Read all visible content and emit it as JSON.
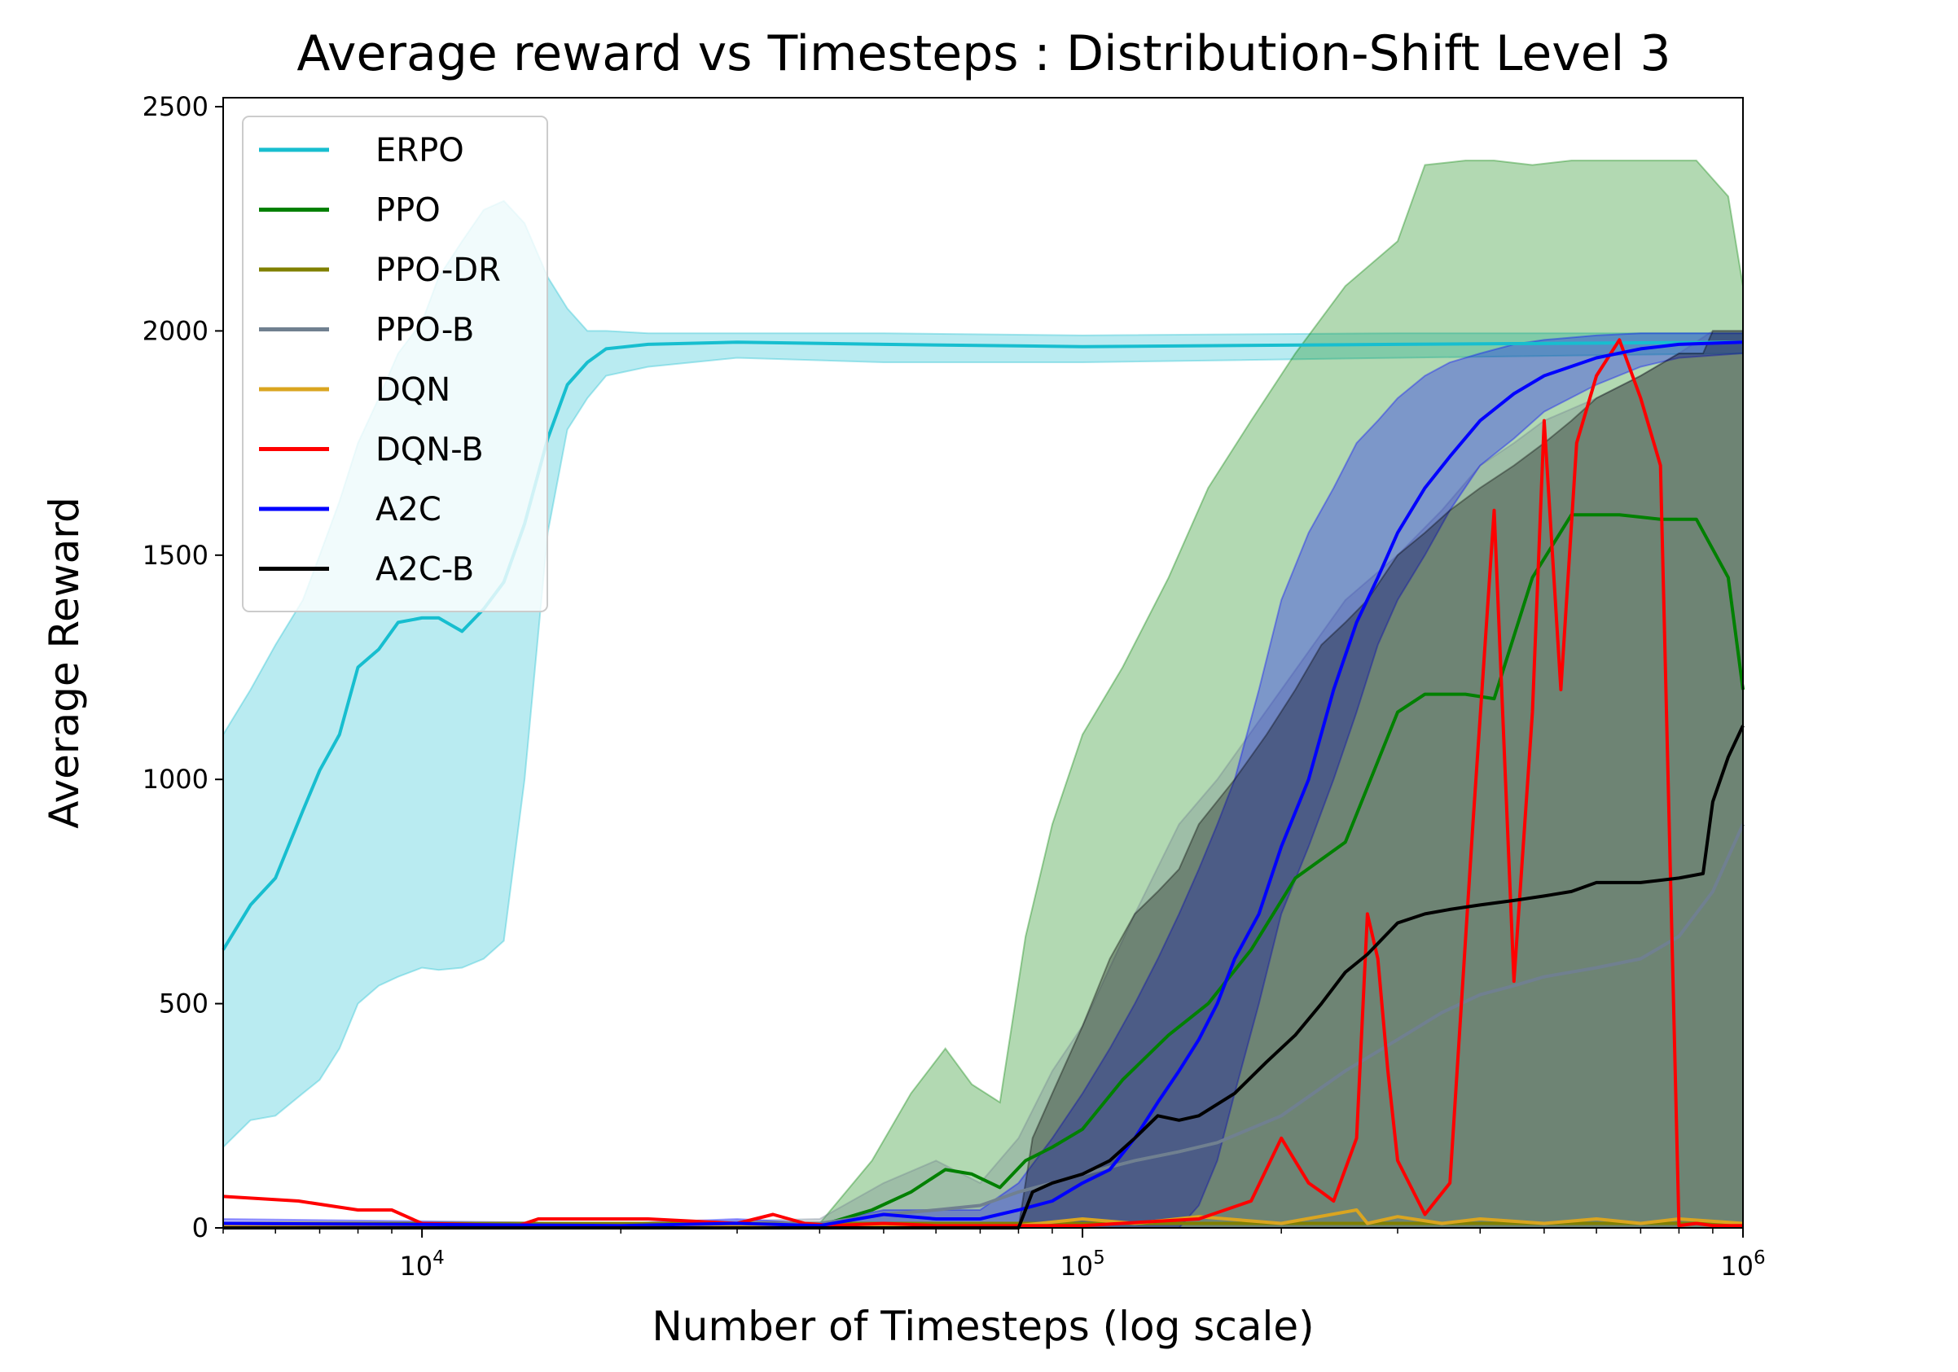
{
  "chart_data": {
    "type": "line",
    "title": "Average reward vs Timesteps : Distribution-Shift Level 3",
    "xlabel": "Number of Timesteps (log scale)",
    "ylabel": "Average Reward",
    "xscale": "log",
    "xlim": [
      5000,
      1000000
    ],
    "ylim": [
      0,
      2520
    ],
    "x_ticks": [
      {
        "value": 10000,
        "base": "10",
        "exp": "4"
      },
      {
        "value": 100000,
        "base": "10",
        "exp": "5"
      },
      {
        "value": 1000000,
        "base": "10",
        "exp": "6"
      }
    ],
    "y_ticks": [
      0,
      500,
      1000,
      1500,
      2000,
      2500
    ],
    "grid": false,
    "legend": "top-left",
    "series": [
      {
        "name": "ERPO",
        "color": "#17becf",
        "x": [
          5000,
          5500,
          6000,
          6600,
          7000,
          7500,
          8000,
          8600,
          9200,
          10000,
          10600,
          11500,
          12400,
          13300,
          14300,
          15500,
          16600,
          17800,
          19000,
          22000,
          30000,
          50000,
          100000,
          300000,
          1000000
        ],
        "y": [
          620,
          720,
          780,
          930,
          1020,
          1100,
          1250,
          1290,
          1350,
          1360,
          1360,
          1330,
          1380,
          1440,
          1570,
          1760,
          1880,
          1930,
          1960,
          1970,
          1975,
          1970,
          1965,
          1970,
          1975
        ],
        "upper": [
          1100,
          1200,
          1300,
          1400,
          1500,
          1620,
          1750,
          1850,
          1950,
          2020,
          2120,
          2200,
          2270,
          2290,
          2240,
          2120,
          2050,
          2000,
          2000,
          1995,
          1995,
          1995,
          1990,
          1995,
          1995
        ],
        "lower": [
          180,
          240,
          250,
          300,
          330,
          400,
          500,
          540,
          560,
          580,
          575,
          580,
          600,
          640,
          1000,
          1550,
          1780,
          1850,
          1900,
          1920,
          1940,
          1930,
          1930,
          1940,
          1950
        ]
      },
      {
        "name": "PPO",
        "color": "#008000",
        "x": [
          5000,
          40000,
          48000,
          55000,
          62000,
          68000,
          75000,
          82000,
          90000,
          100000,
          115000,
          135000,
          155000,
          180000,
          210000,
          250000,
          300000,
          330000,
          380000,
          420000,
          480000,
          550000,
          650000,
          750000,
          850000,
          950000,
          1000000
        ],
        "y": [
          5,
          5,
          40,
          80,
          130,
          120,
          90,
          150,
          180,
          220,
          330,
          430,
          500,
          620,
          780,
          860,
          1150,
          1190,
          1190,
          1180,
          1450,
          1590,
          1590,
          1580,
          1580,
          1450,
          1200
        ],
        "upper": [
          10,
          10,
          150,
          300,
          400,
          320,
          280,
          650,
          900,
          1100,
          1250,
          1450,
          1650,
          1800,
          1950,
          2100,
          2200,
          2370,
          2380,
          2380,
          2370,
          2380,
          2380,
          2380,
          2380,
          2300,
          2100
        ],
        "lower": [
          0,
          0,
          0,
          0,
          0,
          0,
          0,
          0,
          0,
          0,
          0,
          0,
          0,
          0,
          0,
          0,
          0,
          0,
          0,
          0,
          0,
          0,
          0,
          0,
          0,
          0,
          0
        ]
      },
      {
        "name": "PPO-DR",
        "color": "#808000",
        "x": [
          5000,
          1000000
        ],
        "y": [
          10,
          10
        ]
      },
      {
        "name": "PPO-B",
        "color": "#708090",
        "x": [
          5000,
          20000,
          40000,
          50000,
          60000,
          70000,
          80000,
          90000,
          100000,
          120000,
          140000,
          160000,
          200000,
          250000,
          300000,
          350000,
          400000,
          450000,
          500000,
          600000,
          700000,
          800000,
          900000,
          1000000
        ],
        "y": [
          5,
          5,
          10,
          30,
          40,
          50,
          80,
          100,
          120,
          150,
          170,
          190,
          250,
          350,
          420,
          480,
          520,
          540,
          560,
          580,
          600,
          650,
          750,
          900
        ],
        "upper": [
          10,
          10,
          20,
          100,
          150,
          100,
          200,
          350,
          450,
          700,
          900,
          1000,
          1200,
          1400,
          1500,
          1600,
          1700,
          1750,
          1800,
          1850,
          1900,
          1950,
          2000,
          2000
        ],
        "lower": [
          0,
          0,
          0,
          0,
          0,
          0,
          0,
          0,
          0,
          0,
          0,
          0,
          0,
          0,
          0,
          0,
          0,
          0,
          0,
          0,
          0,
          0,
          0,
          0
        ]
      },
      {
        "name": "DQN",
        "color": "#daa520",
        "x": [
          5000,
          80000,
          100000,
          120000,
          150000,
          200000,
          260000,
          270000,
          300000,
          350000,
          400000,
          500000,
          600000,
          700000,
          800000,
          1000000
        ],
        "y": [
          5,
          5,
          20,
          10,
          25,
          10,
          40,
          10,
          25,
          10,
          20,
          10,
          20,
          10,
          20,
          10
        ]
      },
      {
        "name": "DQN-B",
        "color": "#ff0000",
        "x": [
          5000,
          6500,
          8000,
          9000,
          10000,
          14000,
          15000,
          22000,
          30000,
          34000,
          38000,
          42000,
          50000,
          60000,
          80000,
          100000,
          150000,
          180000,
          200000,
          220000,
          230000,
          240000,
          260000,
          270000,
          280000,
          290000,
          300000,
          330000,
          360000,
          390000,
          420000,
          450000,
          480000,
          500000,
          530000,
          560000,
          600000,
          650000,
          700000,
          750000,
          800000,
          850000,
          900000,
          1000000
        ],
        "y": [
          70,
          60,
          40,
          40,
          10,
          5,
          20,
          20,
          10,
          30,
          10,
          5,
          10,
          5,
          5,
          5,
          20,
          60,
          200,
          100,
          80,
          60,
          200,
          700,
          600,
          350,
          150,
          30,
          100,
          900,
          1600,
          550,
          1150,
          1800,
          1200,
          1750,
          1900,
          1980,
          1850,
          1700,
          5,
          10,
          5,
          5
        ]
      },
      {
        "name": "A2C",
        "color": "#0000ff",
        "x": [
          5000,
          20000,
          30000,
          40000,
          50000,
          60000,
          70000,
          80000,
          90000,
          100000,
          110000,
          120000,
          130000,
          140000,
          150000,
          160000,
          170000,
          185000,
          200000,
          220000,
          240000,
          260000,
          280000,
          300000,
          330000,
          360000,
          400000,
          450000,
          500000,
          600000,
          700000,
          800000,
          1000000
        ],
        "y": [
          10,
          5,
          10,
          5,
          30,
          20,
          20,
          40,
          60,
          100,
          130,
          200,
          280,
          350,
          420,
          500,
          600,
          700,
          850,
          1000,
          1200,
          1350,
          1450,
          1550,
          1650,
          1720,
          1800,
          1860,
          1900,
          1940,
          1960,
          1970,
          1975
        ],
        "upper": [
          20,
          10,
          20,
          10,
          40,
          40,
          40,
          100,
          200,
          300,
          400,
          500,
          600,
          700,
          800,
          900,
          1000,
          1200,
          1400,
          1550,
          1650,
          1750,
          1800,
          1850,
          1900,
          1930,
          1950,
          1970,
          1980,
          1990,
          1995,
          1995,
          1995
        ],
        "lower": [
          0,
          0,
          0,
          0,
          0,
          0,
          0,
          0,
          0,
          0,
          0,
          0,
          0,
          0,
          50,
          150,
          300,
          500,
          700,
          850,
          1000,
          1150,
          1300,
          1400,
          1500,
          1600,
          1700,
          1760,
          1820,
          1880,
          1920,
          1940,
          1950
        ]
      },
      {
        "name": "A2C-B",
        "color": "#000000",
        "x": [
          5000,
          80000,
          84000,
          90000,
          100000,
          110000,
          120000,
          130000,
          140000,
          150000,
          170000,
          190000,
          210000,
          230000,
          250000,
          270000,
          300000,
          330000,
          360000,
          400000,
          450000,
          500000,
          550000,
          600000,
          700000,
          800000,
          870000,
          900000,
          950000,
          1000000
        ],
        "y": [
          0,
          0,
          80,
          100,
          120,
          150,
          200,
          250,
          240,
          250,
          300,
          370,
          430,
          500,
          570,
          610,
          680,
          700,
          710,
          720,
          730,
          740,
          750,
          770,
          770,
          780,
          790,
          950,
          1050,
          1120
        ],
        "upper": [
          0,
          0,
          200,
          300,
          450,
          600,
          700,
          750,
          800,
          900,
          1000,
          1100,
          1200,
          1300,
          1350,
          1400,
          1500,
          1550,
          1600,
          1650,
          1700,
          1750,
          1800,
          1850,
          1900,
          1950,
          1950,
          2000,
          2000,
          2000
        ],
        "lower": [
          0,
          0,
          0,
          0,
          0,
          0,
          0,
          0,
          0,
          0,
          0,
          0,
          0,
          0,
          0,
          0,
          0,
          0,
          0,
          0,
          0,
          0,
          0,
          0,
          0,
          0,
          0,
          0,
          0,
          0
        ]
      }
    ]
  }
}
